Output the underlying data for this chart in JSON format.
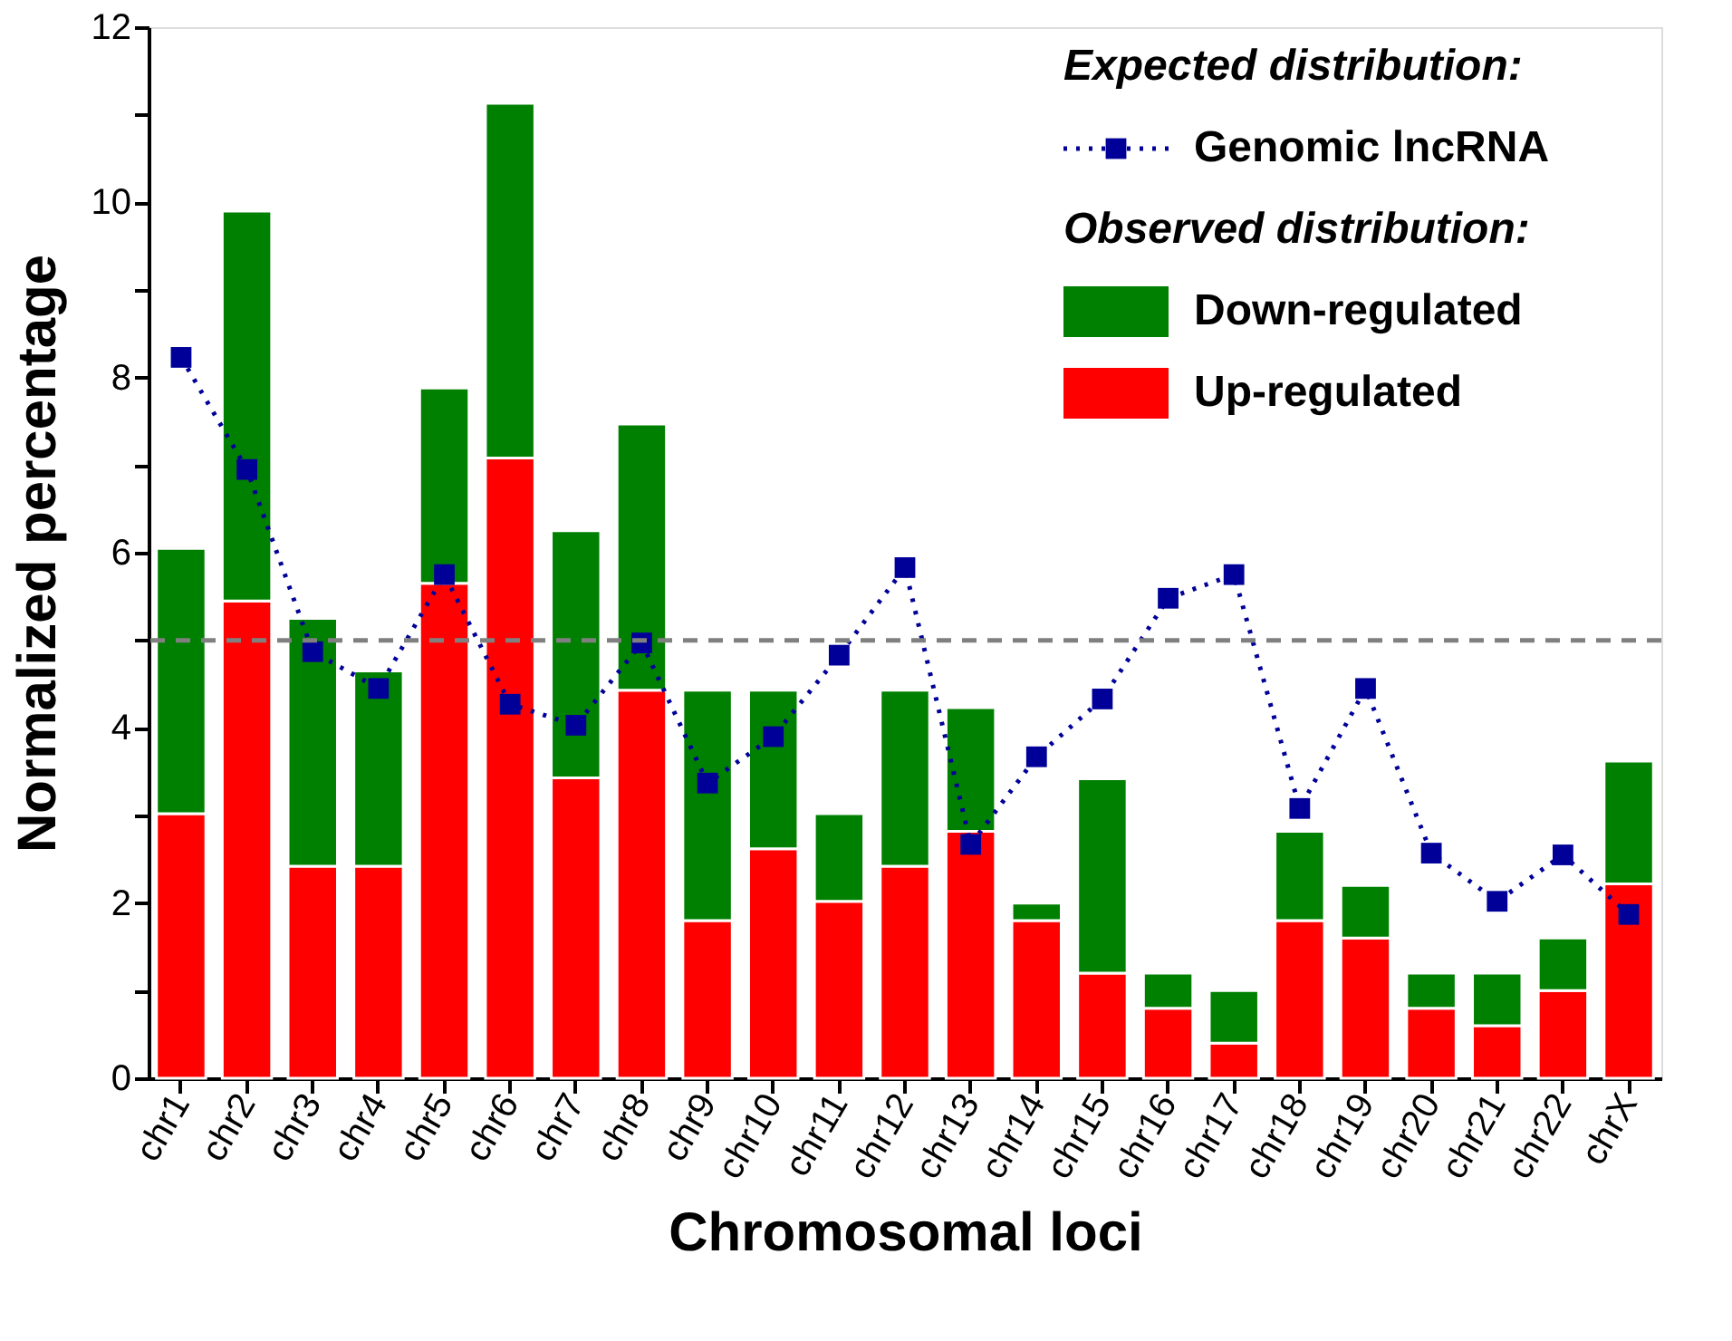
{
  "chart_data": {
    "type": "bar",
    "stacked": true,
    "xlabel": "Chromosomal loci",
    "ylabel": "Normalized percentage",
    "categories": [
      "chr1",
      "chr2",
      "chr3",
      "chr4",
      "chr5",
      "chr6",
      "chr7",
      "chr8",
      "chr9",
      "chr10",
      "chr11",
      "chr12",
      "chr13",
      "chr14",
      "chr15",
      "chr16",
      "chr17",
      "chr18",
      "chr19",
      "chr20",
      "chr21",
      "chr22",
      "chrX"
    ],
    "series": [
      {
        "name": "Up-regulated",
        "color": "#ff0000",
        "values": [
          3.02,
          5.45,
          2.42,
          2.42,
          5.65,
          7.08,
          3.43,
          4.43,
          1.8,
          2.62,
          2.02,
          2.42,
          2.82,
          1.8,
          1.2,
          0.8,
          0.4,
          1.8,
          1.6,
          0.8,
          0.6,
          1.0,
          2.22
        ]
      },
      {
        "name": "Down-regulated",
        "color": "#008000",
        "values": [
          3.03,
          4.45,
          2.83,
          2.23,
          2.23,
          4.05,
          2.82,
          3.04,
          2.63,
          1.81,
          1.0,
          2.01,
          1.41,
          0.2,
          2.22,
          0.4,
          0.6,
          1.02,
          0.6,
          0.4,
          0.6,
          0.6,
          1.4
        ]
      },
      {
        "name": "Genomic lncRNA",
        "type": "line",
        "color": "#000099",
        "marker": "square",
        "line_style": "dotted",
        "values": [
          8.23,
          6.95,
          4.87,
          4.45,
          5.75,
          4.27,
          4.03,
          4.97,
          3.37,
          3.9,
          4.83,
          5.83,
          2.67,
          3.67,
          4.33,
          5.48,
          5.75,
          3.08,
          4.45,
          2.57,
          2.02,
          2.55,
          1.87
        ]
      }
    ],
    "ylim": [
      0,
      12
    ],
    "yticks": [
      0,
      {
        "value": 1,
        "label": null
      },
      2,
      {
        "value": 3,
        "label": null
      },
      4,
      {
        "value": 5,
        "label": null
      },
      6,
      {
        "value": 7,
        "label": null
      },
      8,
      {
        "value": 9,
        "label": null
      },
      10,
      {
        "value": 11,
        "label": null
      },
      12
    ],
    "ref_lines": [
      {
        "axis": "y",
        "value": 5,
        "color": "#808080",
        "line_style": "dashed"
      }
    ],
    "annotations": [
      "Expected distribution:",
      "Observed distribution:"
    ],
    "legend": "top right",
    "grid": false
  }
}
